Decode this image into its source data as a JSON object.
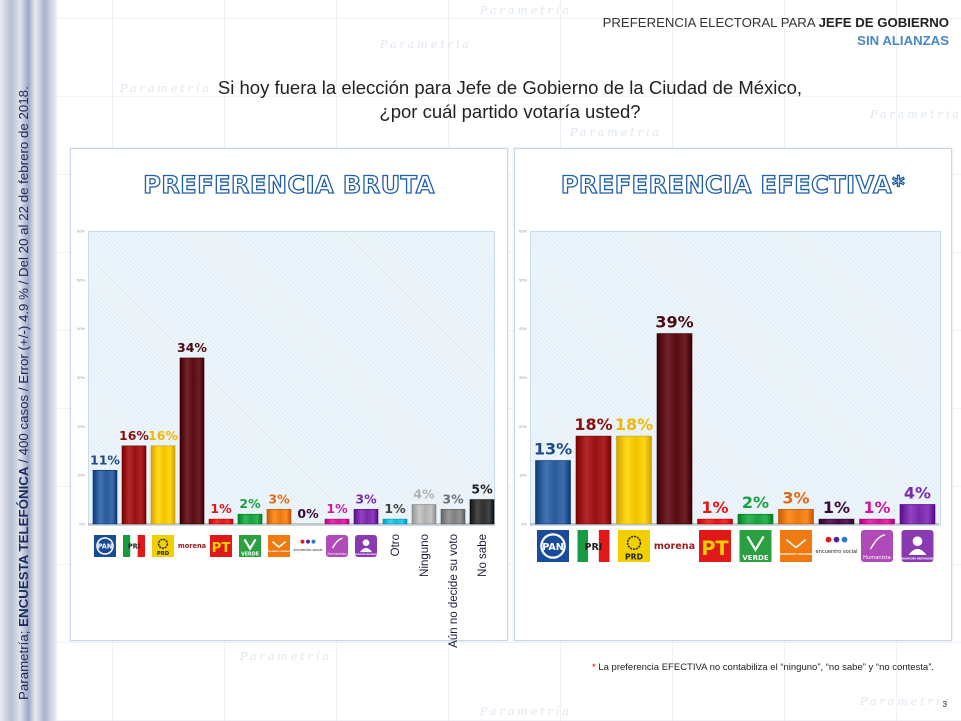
{
  "header": {
    "title_plain": "PREFERENCIA ELECTORAL PARA ",
    "title_bold": "JEFE DE GOBIERNO",
    "subtitle": "SIN ALIANZAS"
  },
  "question": {
    "line1": "Si hoy fuera la elección para Jefe de Gobierno de la Ciudad de México,",
    "line2": "¿por cuál partido votaría usted?"
  },
  "sidebar": {
    "source_plain": "Parametría; ",
    "source_bold": "ENCUESTA TELEFÓNICA",
    "details": " / 400 casos / Error (+/-) 4.9 % / Del 20 al 22 de febrero de 2018."
  },
  "watermark": "Parametría",
  "colors": {
    "PAN": "#2a5a9a",
    "PRI": "#9a1010",
    "PRD": "#f2c200",
    "morena": "#5a0a12",
    "PT": "#e01818",
    "VERDE": "#1aa040",
    "MC": "#e87810",
    "PES": "#4a0a4a",
    "Humanista": "#d01a9a",
    "Independiente": "#7a2aa8",
    "Otro": "#20b8d8",
    "Ninguno": "#b0b0b0",
    "Aun": "#808080",
    "NoSabe": "#303030",
    "title_stroke": "#1f5fa8",
    "subtitle": "#4a86c8"
  },
  "chart_data": [
    {
      "type": "bar",
      "title": "PREFERENCIA BRUTA",
      "xlabel": "",
      "ylabel": "",
      "ylim": [
        0,
        60
      ],
      "yticks": [
        "0%",
        "10%",
        "20%",
        "30%",
        "40%",
        "50%",
        "60%"
      ],
      "grid": false,
      "legend": "none",
      "categories": [
        "PAN",
        "PRI",
        "PRD",
        "morena",
        "PT",
        "VERDE",
        "MC",
        "PES",
        "Humanista",
        "Independiente",
        "Otro",
        "Ninguno",
        "Aún no decide su voto",
        "No sabe"
      ],
      "category_kinds": [
        "logo",
        "logo",
        "logo",
        "logo",
        "logo",
        "logo",
        "logo",
        "logo",
        "logo",
        "logo",
        "text",
        "text",
        "text",
        "text"
      ],
      "values": [
        11,
        16,
        16,
        34,
        1,
        2,
        3,
        0,
        1,
        3,
        1,
        4,
        3,
        5
      ],
      "labels": [
        "11%",
        "16%",
        "16%",
        "34%",
        "1%",
        "2%",
        "3%",
        "0%",
        "1%",
        "3%",
        "1%",
        "4%",
        "3%",
        "5%"
      ],
      "color_keys": [
        "PAN",
        "PRI",
        "PRD",
        "morena",
        "PT",
        "VERDE",
        "MC",
        "PES",
        "Humanista",
        "Independiente",
        "Otro",
        "Ninguno",
        "Aun",
        "NoSabe"
      ],
      "label_colors": [
        "#1f4a8a",
        "#8a1010",
        "#f2b800",
        "#4a0a10",
        "#e01818",
        "#1aa040",
        "#e06a10",
        "#3a0a3a",
        "#d01a9a",
        "#7a2aa8",
        "#404040",
        "#b0b0b0",
        "#707070",
        "#202020"
      ]
    },
    {
      "type": "bar",
      "title": "PREFERENCIA EFECTIVA*",
      "xlabel": "",
      "ylabel": "",
      "ylim": [
        0,
        60
      ],
      "yticks": [
        "0%",
        "10%",
        "20%",
        "30%",
        "40%",
        "50%",
        "60%"
      ],
      "grid": false,
      "legend": "none",
      "categories": [
        "PAN",
        "PRI",
        "PRD",
        "morena",
        "PT",
        "VERDE",
        "MC",
        "PES",
        "Humanista",
        "Independiente"
      ],
      "category_kinds": [
        "logo",
        "logo",
        "logo",
        "logo",
        "logo",
        "logo",
        "logo",
        "logo",
        "logo",
        "logo"
      ],
      "values": [
        13,
        18,
        18,
        39,
        1,
        2,
        3,
        1,
        1,
        4
      ],
      "labels": [
        "13%",
        "18%",
        "18%",
        "39%",
        "1%",
        "2%",
        "3%",
        "1%",
        "1%",
        "4%"
      ],
      "color_keys": [
        "PAN",
        "PRI",
        "PRD",
        "morena",
        "PT",
        "VERDE",
        "MC",
        "PES",
        "Humanista",
        "Independiente"
      ],
      "label_colors": [
        "#1f4a8a",
        "#8a1010",
        "#f2b800",
        "#4a0a10",
        "#e01818",
        "#1aa040",
        "#e06a10",
        "#3a0a3a",
        "#d01a9a",
        "#7a2aa8"
      ]
    }
  ],
  "logos": {
    "PAN": "PAN",
    "PRI": "PRI",
    "PRD": "PRD",
    "morena": "morena",
    "PT": "PT",
    "VERDE": "VERDE",
    "MC": "MOVIMIENTO CIUDADANO",
    "PES": "encuentro social",
    "Humanista": "Humanista",
    "Independiente": "CANDIDATURA INDEPENDIENTE"
  },
  "footnote": {
    "asterisk": "*",
    "text": " La preferencia EFECTIVA no contabiliza el “ninguno”, “no sabe” y “no contesta”."
  },
  "page_number": "3"
}
